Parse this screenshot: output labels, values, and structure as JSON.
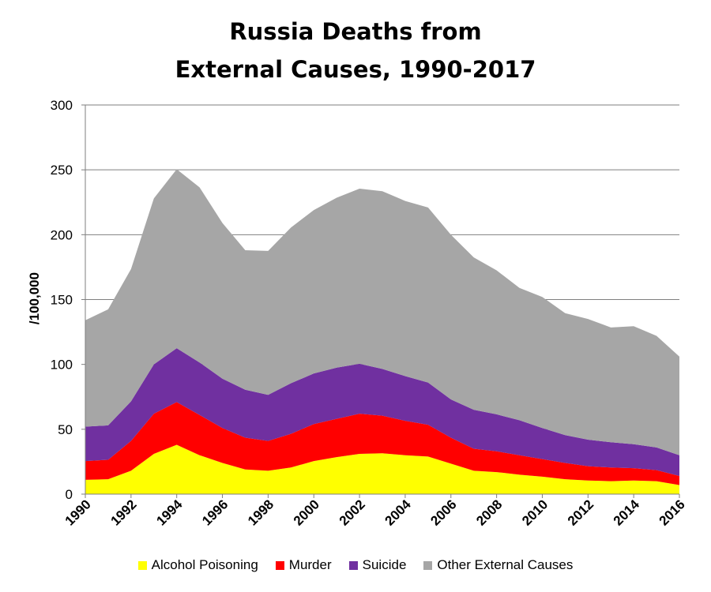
{
  "chart_data": {
    "type": "area",
    "stacked": true,
    "title_line1": "Russia Deaths from",
    "title_line2": "External Causes, 1990-2017",
    "ylabel": "/100,000",
    "ylim": [
      0,
      300
    ],
    "yticks": [
      0,
      50,
      100,
      150,
      200,
      250,
      300
    ],
    "xticks": [
      1990,
      1992,
      1994,
      1996,
      1998,
      2000,
      2002,
      2004,
      2006,
      2008,
      2010,
      2012,
      2014,
      2016
    ],
    "xlim": [
      1990,
      2016
    ],
    "legend_position": "bottom",
    "x": [
      1990,
      1991,
      1992,
      1993,
      1994,
      1995,
      1996,
      1997,
      1998,
      1999,
      2000,
      2001,
      2002,
      2003,
      2004,
      2005,
      2006,
      2007,
      2008,
      2009,
      2010,
      2011,
      2012,
      2013,
      2014,
      2015,
      2016
    ],
    "series": [
      {
        "name": "Alcohol Poisoning",
        "color": "#ffff00",
        "values": [
          11,
          11.5,
          18,
          31,
          38,
          30,
          24,
          19,
          18,
          20.5,
          25.5,
          28.5,
          31,
          31.5,
          30,
          29,
          23.5,
          18,
          17,
          15,
          13.5,
          11.5,
          10.5,
          10,
          10.5,
          10,
          7
        ]
      },
      {
        "name": "Murder",
        "color": "#ff0000",
        "values": [
          14.5,
          15,
          23,
          31,
          33,
          31,
          27,
          24.5,
          23,
          26,
          28.5,
          29.5,
          31,
          29,
          26.5,
          24.5,
          20,
          17,
          16,
          15,
          13.5,
          12.5,
          11,
          10.5,
          9.5,
          8.5,
          7
        ]
      },
      {
        "name": "Suicide",
        "color": "#7030a0",
        "values": [
          26.5,
          26.5,
          30.5,
          38,
          41.5,
          40.5,
          38,
          37,
          35.5,
          39,
          39,
          39.5,
          38.5,
          36,
          34.5,
          32.5,
          29.5,
          30,
          28.5,
          27,
          24,
          21.5,
          20.5,
          19.5,
          18.5,
          17.5,
          16
        ]
      },
      {
        "name": "Other External Causes",
        "color": "#a6a6a6",
        "values": [
          82,
          89.5,
          102,
          128,
          138,
          135,
          120,
          107.5,
          111,
          120,
          126,
          131,
          135,
          137,
          135,
          135,
          127,
          117.5,
          111,
          102,
          101,
          94,
          93,
          88.5,
          91,
          86,
          76
        ]
      }
    ]
  }
}
